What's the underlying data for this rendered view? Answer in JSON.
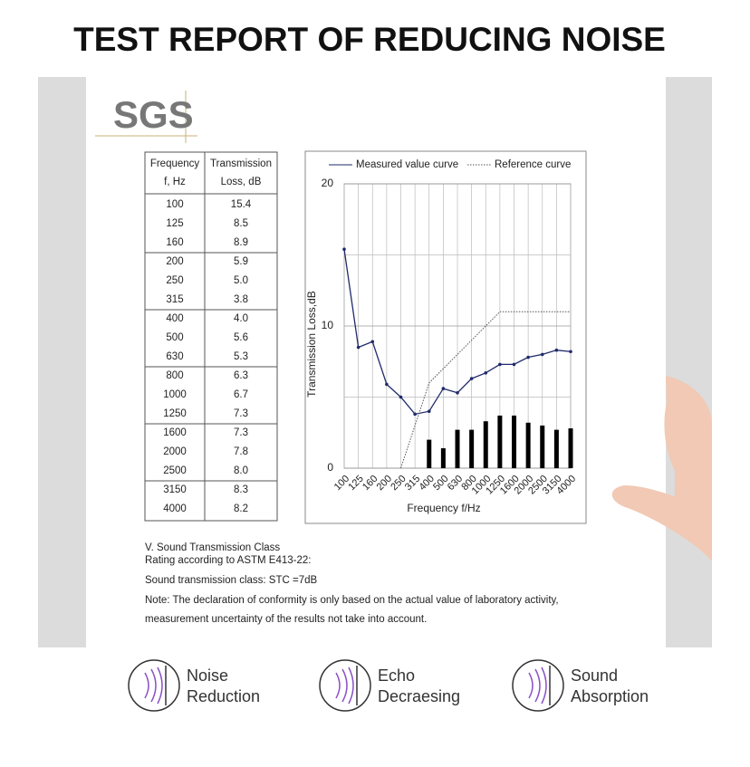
{
  "title": "TEST REPORT OF REDUCING NOISE",
  "logo": "SGS",
  "table": {
    "header": [
      [
        "Frequency",
        "f, Hz"
      ],
      [
        "Transmission",
        "Loss, dB"
      ]
    ],
    "rows": [
      [
        "100",
        "15.4"
      ],
      [
        "125",
        "8.5"
      ],
      [
        "160",
        "8.9"
      ],
      [
        "200",
        "5.9"
      ],
      [
        "250",
        "5.0"
      ],
      [
        "315",
        "3.8"
      ],
      [
        "400",
        "4.0"
      ],
      [
        "500",
        "5.6"
      ],
      [
        "630",
        "5.3"
      ],
      [
        "800",
        "6.3"
      ],
      [
        "1000",
        "6.7"
      ],
      [
        "1250",
        "7.3"
      ],
      [
        "1600",
        "7.3"
      ],
      [
        "2000",
        "7.8"
      ],
      [
        "2500",
        "8.0"
      ],
      [
        "3150",
        "8.3"
      ],
      [
        "4000",
        "8.2"
      ]
    ]
  },
  "chart": {
    "type": "line",
    "xlabel": "Frequency f/Hz",
    "ylabel": "Transmission Loss,dB",
    "categories": [
      "100",
      "125",
      "160",
      "200",
      "250",
      "315",
      "400",
      "500",
      "630",
      "800",
      "1000",
      "1250",
      "1600",
      "2000",
      "2500",
      "3150",
      "4000"
    ],
    "series": [
      {
        "name": "Measured value curve",
        "color": "#1f2a6b",
        "style": "solid",
        "values": [
          15.4,
          8.5,
          8.9,
          5.9,
          5.0,
          3.8,
          4.0,
          5.6,
          5.3,
          6.3,
          6.7,
          7.3,
          7.3,
          7.8,
          8.0,
          8.3,
          8.2
        ]
      },
      {
        "name": "Reference curve",
        "color": "#555555",
        "style": "dotted",
        "values": [
          null,
          null,
          null,
          null,
          0,
          3,
          6,
          7,
          8,
          9,
          10,
          11,
          11,
          11,
          11,
          11,
          11
        ]
      }
    ],
    "bar_values": [
      null,
      null,
      null,
      null,
      null,
      null,
      2.0,
      1.4,
      2.7,
      2.7,
      3.3,
      3.7,
      3.7,
      3.2,
      3.0,
      2.7,
      2.8
    ],
    "bar_color": "#000000",
    "ylim": [
      0,
      20
    ],
    "yticks": [
      0,
      10,
      20
    ],
    "grid_yticks": [
      5,
      15
    ],
    "grid": true
  },
  "notes": [
    "V.    Sound Transmission Class",
    "Rating according to ASTM E413-22:",
    "Sound transmission class: STC =7dB",
    "Note: The declaration of conformity is only based on the actual value of laboratory activity,",
    "measurement uncertainty of the results not take into account."
  ],
  "features": [
    [
      "Noise",
      "Reduction"
    ],
    [
      "Echo",
      "Decraesing"
    ],
    [
      "Sound",
      "Absorption"
    ]
  ]
}
